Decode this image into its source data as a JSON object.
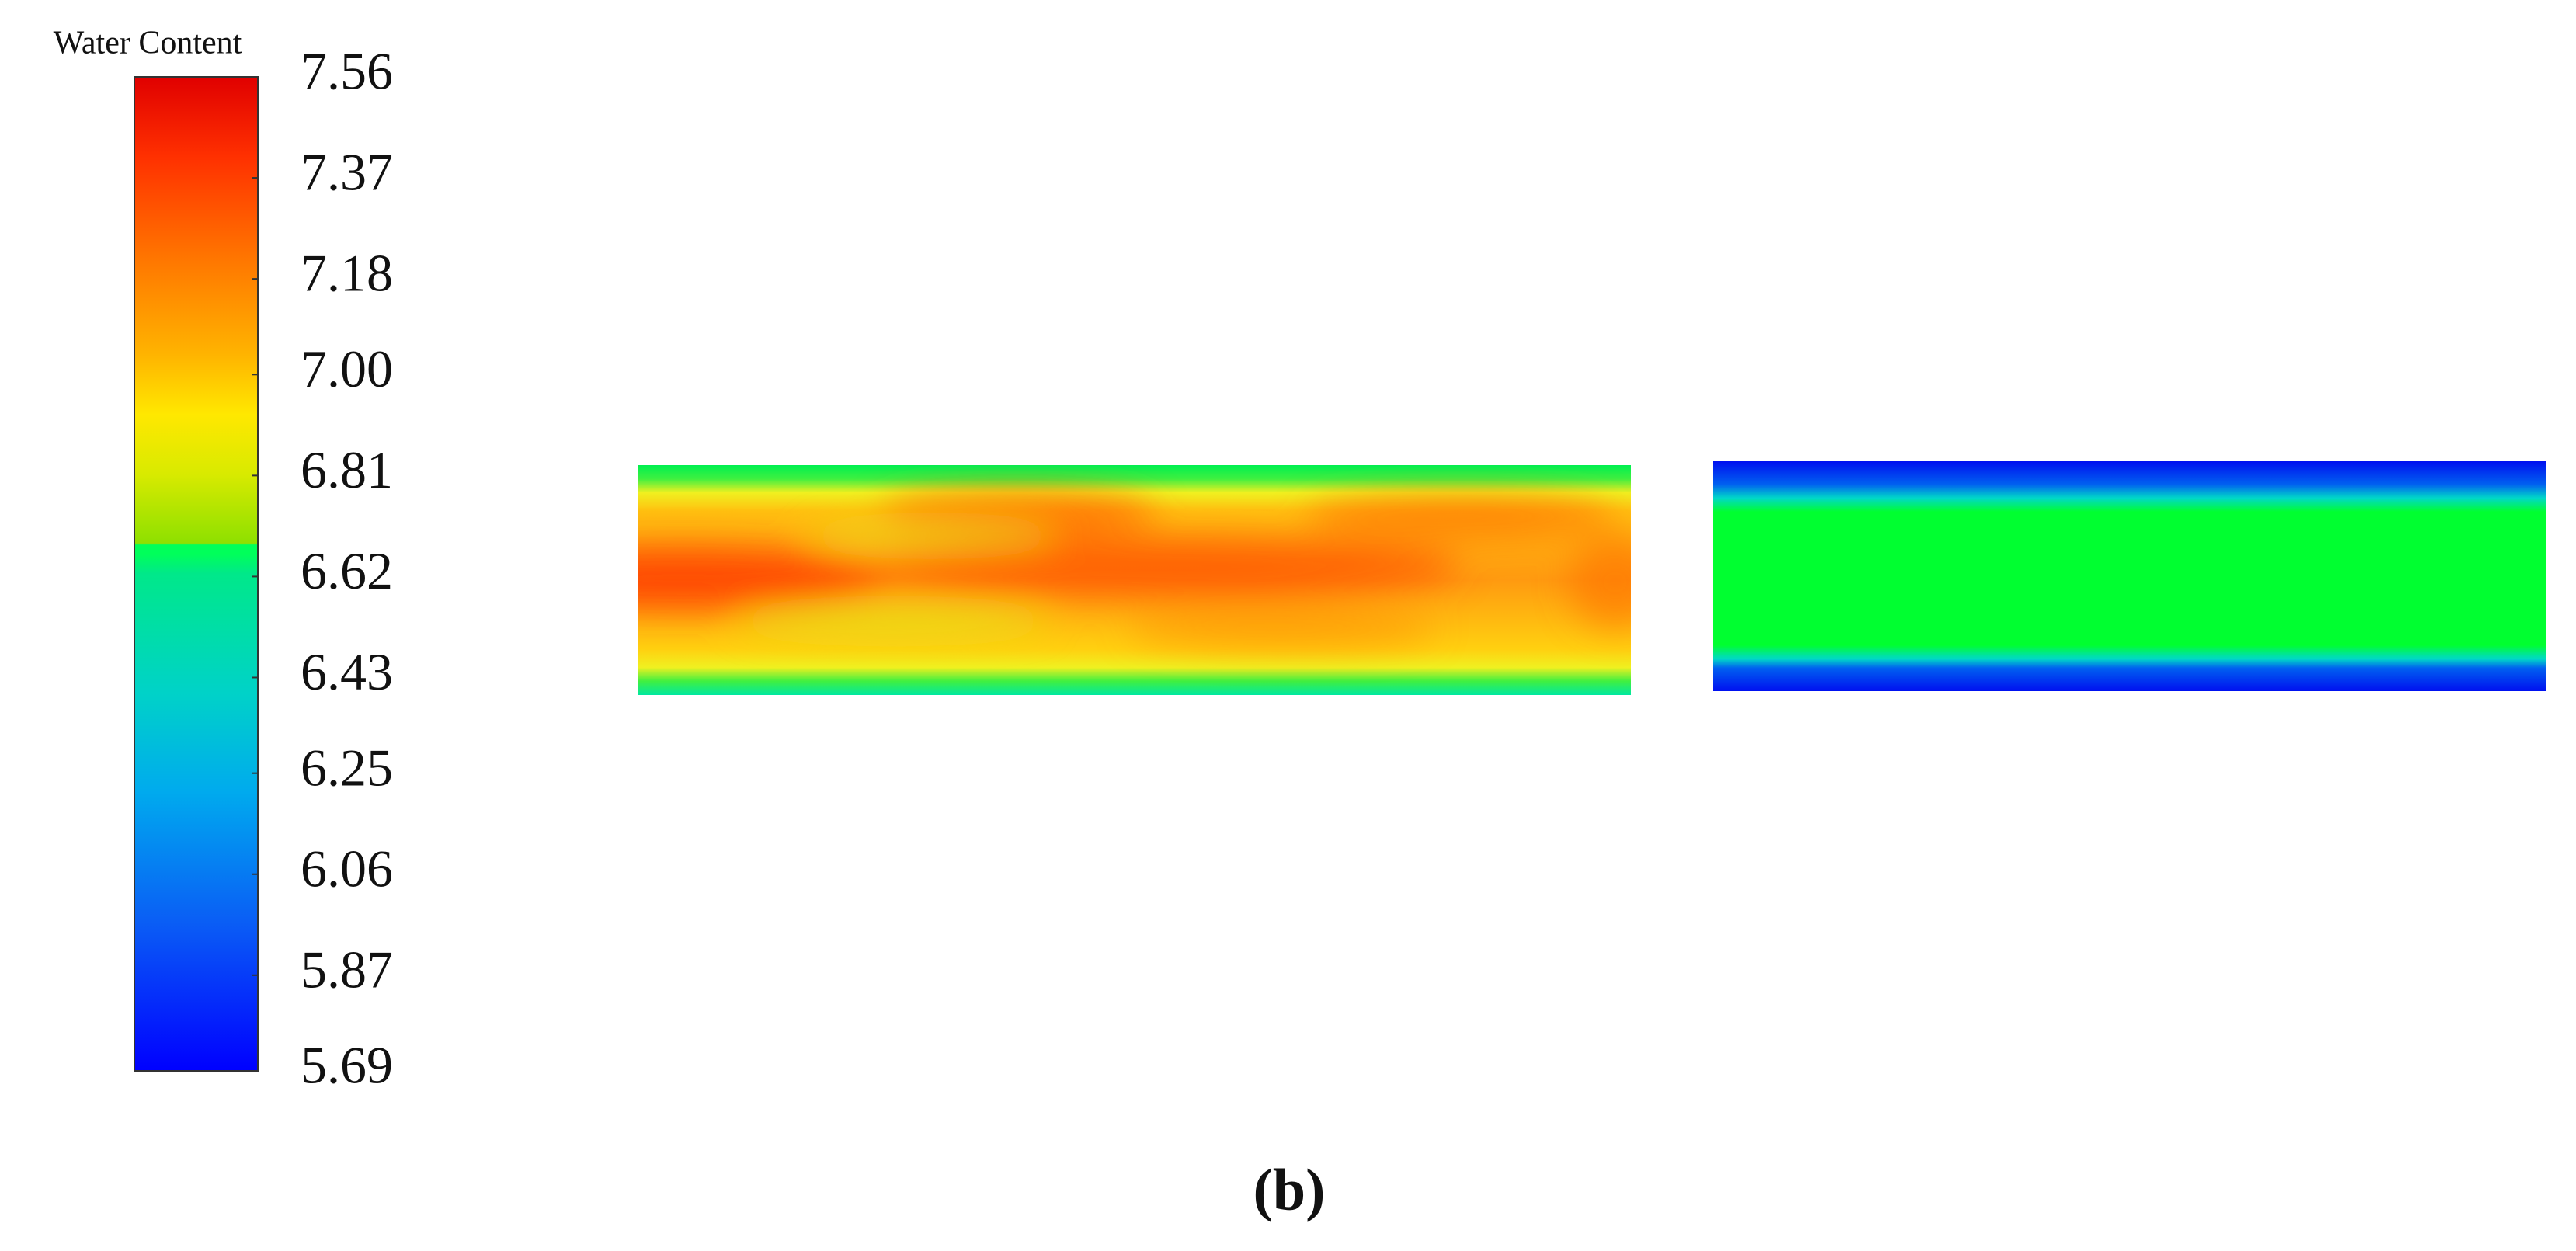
{
  "chart_data": {
    "type": "contour",
    "title": "Water Content",
    "clim": [
      5.69,
      7.56
    ],
    "cticks": [
      7.56,
      7.37,
      7.18,
      {
        "value": 7,
        "label": "7.00"
      },
      6.81,
      6.62,
      6.43,
      6.25,
      6.06,
      5.87,
      5.69
    ],
    "panel_label": "(b)"
  }
}
